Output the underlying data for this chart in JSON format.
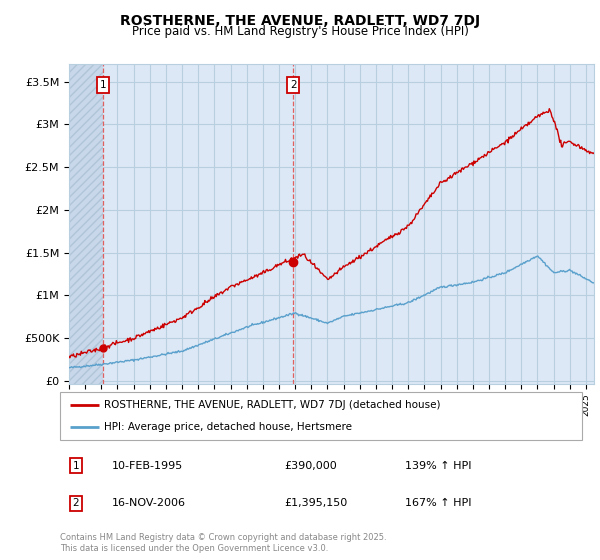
{
  "title": "ROSTHERNE, THE AVENUE, RADLETT, WD7 7DJ",
  "subtitle": "Price paid vs. HM Land Registry's House Price Index (HPI)",
  "ylabel_ticks": [
    "£0",
    "£500K",
    "£1M",
    "£1.5M",
    "£2M",
    "£2.5M",
    "£3M",
    "£3.5M"
  ],
  "ytick_values": [
    0,
    500000,
    1000000,
    1500000,
    2000000,
    2500000,
    3000000,
    3500000
  ],
  "ylim": [
    -30000,
    3700000
  ],
  "xlim_start": 1993.0,
  "xlim_end": 2025.5,
  "sale1_x": 1995.12,
  "sale1_y": 390000,
  "sale2_x": 2006.88,
  "sale2_y": 1395150,
  "legend_line1": "ROSTHERNE, THE AVENUE, RADLETT, WD7 7DJ (detached house)",
  "legend_line2": "HPI: Average price, detached house, Hertsmere",
  "annotation1_date": "10-FEB-1995",
  "annotation1_price": "£390,000",
  "annotation1_hpi": "139% ↑ HPI",
  "annotation2_date": "16-NOV-2006",
  "annotation2_price": "£1,395,150",
  "annotation2_hpi": "167% ↑ HPI",
  "footer": "Contains HM Land Registry data © Crown copyright and database right 2025.\nThis data is licensed under the Open Government Licence v3.0.",
  "plot_bg": "#dce8f5",
  "hatch_bg": "#c8d8ea",
  "hatch_color": "#b0c4d8",
  "red_line_color": "#cc0000",
  "blue_line_color": "#5aa0cc",
  "grid_color": "#b8cfe0",
  "border_color": "#aaaaaa",
  "dashed_color": "#e06060"
}
